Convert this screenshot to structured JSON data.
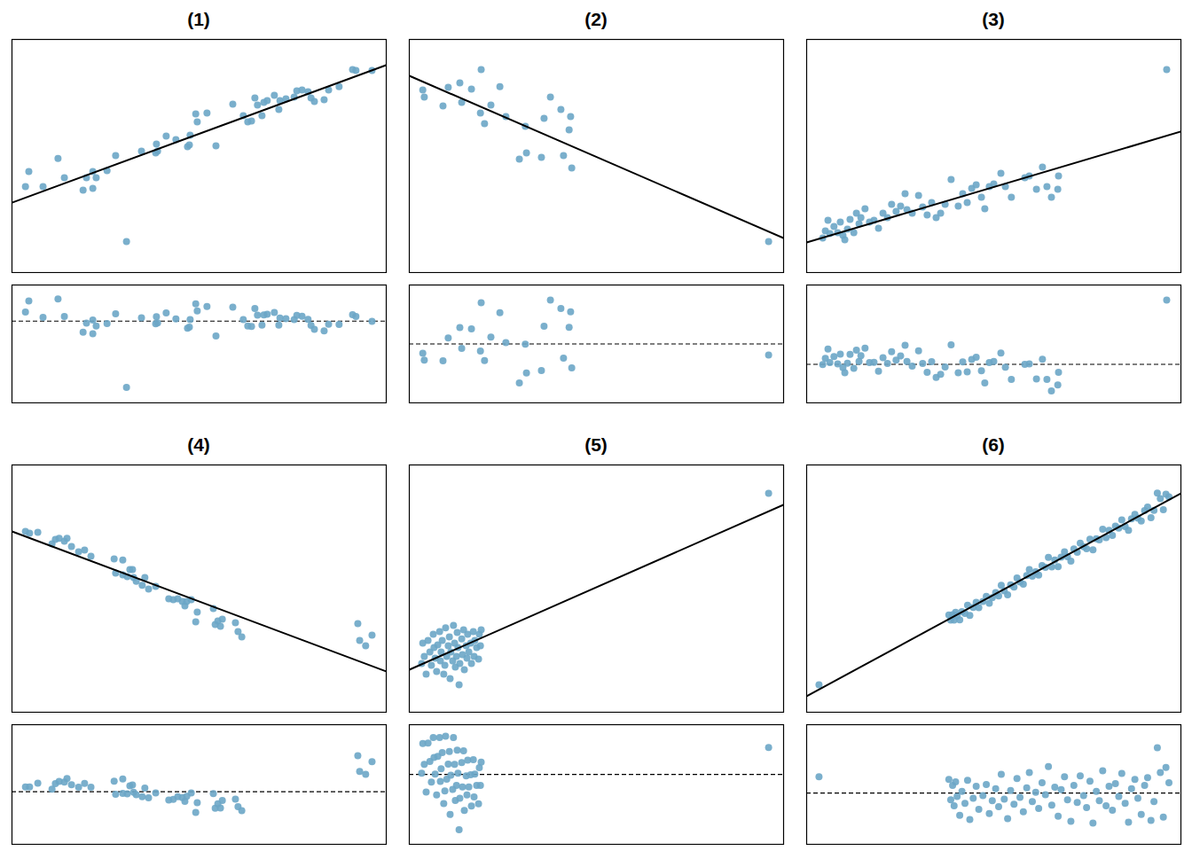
{
  "chart_data": [
    {
      "type": "scatter",
      "title": "(1)",
      "color": "#6ca6c6",
      "marker": "circle",
      "tick_labels": false,
      "xlim": [
        0,
        100
      ],
      "ylim": [
        0,
        100
      ],
      "residual_ylim": [
        -43,
        19
      ],
      "fit_line": {
        "x": [
          0,
          100
        ],
        "y": [
          30.0,
          89.0
        ],
        "color": "#000000"
      },
      "x": [
        3.6,
        4.5,
        8.3,
        12.3,
        14.0,
        19.0,
        19.9,
        21.6,
        21.6,
        22.5,
        25.4,
        27.7,
        30.6,
        34.6,
        38.4,
        38.6,
        38.9,
        41.2,
        43.8,
        46.9,
        47.4,
        47.6,
        49.1,
        49.5,
        52.1,
        54.5,
        59.0,
        61.8,
        63.0,
        64.0,
        64.9,
        65.6,
        66.8,
        67.3,
        68.2,
        70.1,
        71.3,
        71.6,
        73.2,
        75.4,
        76.1,
        77.5,
        79.1,
        79.9,
        80.8,
        83.4,
        84.6,
        87.4,
        91.0,
        91.9,
        96.2
      ],
      "y": [
        36.9,
        43.3,
        36.9,
        49.0,
        40.7,
        35.4,
        40.7,
        36.1,
        43.3,
        40.7,
        43.7,
        50.2,
        13.3,
        52.1,
        51.3,
        55.1,
        52.1,
        58.6,
        57.0,
        54.0,
        54.8,
        58.9,
        68.1,
        64.6,
        68.4,
        54.4,
        72.2,
        67.3,
        64.6,
        65.0,
        74.9,
        71.9,
        67.3,
        73.0,
        73.8,
        76.0,
        70.0,
        73.8,
        74.5,
        75.3,
        77.9,
        78.3,
        77.6,
        74.9,
        73.4,
        74.1,
        78.3,
        79.8,
        87.1,
        86.7,
        86.7
      ],
      "residuals": [
        4.8,
        10.6,
        2.0,
        11.7,
        2.4,
        -5.8,
        -1.0,
        -6.6,
        0.6,
        -2.6,
        -1.3,
        3.9,
        -34.8,
        1.7,
        -1.4,
        2.3,
        -0.9,
        4.3,
        1.2,
        -3.7,
        -3.2,
        0.8,
        9.1,
        5.4,
        7.7,
        -7.8,
        7.4,
        0.8,
        -2.6,
        -2.8,
        6.6,
        3.2,
        -2.1,
        3.3,
        3.6,
        4.6,
        -2.1,
        1.6,
        1.3,
        0.8,
        3.0,
        2.6,
        0.9,
        -2.2,
        -4.3,
        -5.1,
        -1.6,
        -1.8,
        3.4,
        2.5,
        -0.1
      ]
    },
    {
      "type": "scatter",
      "title": "(2)",
      "color": "#6ca6c6",
      "marker": "circle",
      "tick_labels": false,
      "xlim": [
        0,
        100
      ],
      "ylim": [
        0,
        100
      ],
      "residual_ylim": [
        -23,
        23
      ],
      "fit_line": {
        "x": [
          0,
          100
        ],
        "y": [
          84.4,
          14.8
        ],
        "color": "#000000"
      },
      "x": [
        3.6,
        4.0,
        9.0,
        10.4,
        13.5,
        14.0,
        16.6,
        19.2,
        19.0,
        20.1,
        21.8,
        24.2,
        25.8,
        29.4,
        31.0,
        31.3,
        35.3,
        36.0,
        37.7,
        40.5,
        41.2,
        42.7,
        43.1,
        43.4,
        96.0
      ],
      "y": [
        78.3,
        75.3,
        71.5,
        79.5,
        81.4,
        73.0,
        78.7,
        87.1,
        68.4,
        63.9,
        71.9,
        79.8,
        66.9,
        48.7,
        62.7,
        51.3,
        49.4,
        66.2,
        75.3,
        70.0,
        50.2,
        61.2,
        66.9,
        44.9,
        13.3
      ],
      "residuals": [
        -3.6,
        -6.3,
        -6.6,
        2.3,
        6.4,
        -1.7,
        5.9,
        16.1,
        -2.8,
        -6.5,
        2.7,
        12.2,
        0.5,
        -15.2,
        -0.1,
        -11.3,
        -10.4,
        6.9,
        17.1,
        13.8,
        -5.5,
        6.5,
        12.5,
        -9.3,
        -4.3
      ]
    },
    {
      "type": "scatter",
      "title": "(3)",
      "color": "#6ca6c6",
      "marker": "circle",
      "tick_labels": false,
      "xlim": [
        0,
        100
      ],
      "ylim": [
        0,
        100
      ],
      "residual_ylim": [
        -17,
        35
      ],
      "fit_line": {
        "x": [
          0,
          100
        ],
        "y": [
          12.9,
          60.5
        ],
        "color": "#000000"
      },
      "x": [
        4.3,
        5.0,
        5.7,
        6.2,
        7.3,
        8.3,
        9.0,
        9.7,
        10.2,
        10.9,
        11.6,
        12.6,
        13.3,
        14.0,
        14.5,
        15.6,
        16.8,
        18.0,
        19.2,
        20.4,
        21.6,
        22.7,
        23.9,
        25.1,
        26.3,
        26.8,
        28.2,
        29.9,
        31.0,
        32.2,
        33.4,
        34.6,
        35.8,
        37.0,
        38.6,
        40.5,
        41.7,
        42.9,
        44.1,
        45.3,
        46.7,
        47.6,
        48.8,
        50.0,
        51.9,
        53.1,
        54.7,
        58.3,
        59.5,
        61.4,
        63.0,
        64.2,
        65.4,
        67.1,
        67.3,
        96.2
      ],
      "y": [
        14.8,
        17.9,
        22.4,
        16.7,
        19.8,
        17.1,
        21.7,
        16.0,
        14.1,
        18.6,
        22.8,
        17.1,
        25.5,
        20.9,
        23.6,
        27.4,
        21.7,
        22.4,
        19.0,
        25.5,
        23.6,
        29.3,
        26.2,
        28.5,
        33.8,
        27.0,
        25.5,
        33.1,
        28.1,
        24.7,
        30.0,
        23.6,
        25.5,
        29.3,
        39.9,
        28.5,
        33.8,
        30.0,
        36.1,
        37.6,
        32.3,
        27.4,
        36.9,
        38.0,
        42.6,
        36.9,
        32.3,
        40.7,
        41.4,
        35.7,
        45.2,
        36.9,
        32.3,
        35.7,
        41.4,
        87.1
      ],
      "residuals": [
        -0.1,
        2.6,
        6.8,
        0.8,
        3.4,
        0.2,
        4.5,
        -1.5,
        -3.7,
        0.5,
        4.4,
        -1.8,
        6.3,
        1.3,
        3.8,
        7.1,
        0.8,
        0.9,
        -3.0,
        2.9,
        0.4,
        5.6,
        1.9,
        3.7,
        8.4,
        1.3,
        -0.8,
        6.0,
        0.4,
        -3.5,
        1.2,
        -5.8,
        -4.4,
        -1.2,
        8.6,
        -3.7,
        1.1,
        -3.3,
        2.2,
        3.1,
        -2.8,
        -8.2,
        0.8,
        1.3,
        5.0,
        -1.3,
        -6.6,
        0.0,
        0.2,
        -6.4,
        2.3,
        -6.6,
        -11.7,
        -9.1,
        -3.5,
        28.4
      ]
    },
    {
      "type": "scatter",
      "title": "(4)",
      "color": "#6ca6c6",
      "marker": "circle",
      "tick_labels": false,
      "xlim": [
        0,
        100
      ],
      "ylim": [
        0,
        100
      ],
      "residual_ylim": [
        -22,
        28
      ],
      "fit_line": {
        "x": [
          0,
          100
        ],
        "y": [
          73.1,
          16.5
        ],
        "color": "#000000"
      },
      "x": [
        3.6,
        4.7,
        6.9,
        10.7,
        11.6,
        12.6,
        14.0,
        14.7,
        15.9,
        17.8,
        19.4,
        21.1,
        27.3,
        27.7,
        29.6,
        29.6,
        30.8,
        31.5,
        32.2,
        32.5,
        33.2,
        34.8,
        35.5,
        36.5,
        38.4,
        41.9,
        43.1,
        44.3,
        45.5,
        46.2,
        46.7,
        47.9,
        49.1,
        49.5,
        53.8,
        54.3,
        55.0,
        55.7,
        56.2,
        59.7,
        60.4,
        61.4,
        92.4,
        92.9,
        94.5,
        96.2
      ],
      "y": [
        73.1,
        72.4,
        72.8,
        68.1,
        69.9,
        70.3,
        69.2,
        70.3,
        67.0,
        64.9,
        65.6,
        63.1,
        62.0,
        56.3,
        61.6,
        55.6,
        54.8,
        57.7,
        57.7,
        54.5,
        53.0,
        51.3,
        54.5,
        49.8,
        50.9,
        45.9,
        45.5,
        45.9,
        44.8,
        43.0,
        44.8,
        45.5,
        36.6,
        40.5,
        41.9,
        35.5,
        36.9,
        34.8,
        37.6,
        36.2,
        32.6,
        30.5,
        35.8,
        29.0,
        26.9,
        31.2
      ],
      "residuals": [
        2.0,
        2.0,
        3.6,
        1.1,
        3.4,
        4.3,
        4.0,
        5.5,
        2.9,
        1.9,
        3.5,
        1.9,
        4.4,
        -1.1,
        5.3,
        -0.7,
        -0.9,
        2.4,
        2.8,
        -0.2,
        -1.3,
        -2.1,
        1.5,
        -2.6,
        -0.5,
        -3.5,
        -3.2,
        -2.1,
        -2.5,
        -4.0,
        -1.9,
        -0.5,
        -8.7,
        -4.6,
        -0.8,
        -6.9,
        -5.1,
        -6.8,
        -3.7,
        -3.1,
        -6.3,
        -7.9,
        15.0,
        8.5,
        7.3,
        12.5
      ]
    },
    {
      "type": "scatter",
      "title": "(5)",
      "color": "#6ca6c6",
      "marker": "circle",
      "tick_labels": false,
      "xlim": [
        0,
        100
      ],
      "ylim": [
        0,
        100
      ],
      "residual_ylim": [
        -19,
        13.5
      ],
      "fit_line": {
        "x": [
          0,
          100
        ],
        "y": [
          17.2,
          83.9
        ],
        "color": "#000000"
      },
      "x": [
        3.3,
        3.6,
        4.0,
        4.5,
        5.0,
        5.5,
        5.9,
        6.4,
        6.6,
        6.9,
        7.3,
        7.6,
        8.1,
        8.3,
        8.5,
        8.8,
        9.2,
        9.5,
        9.7,
        10.0,
        10.4,
        10.7,
        10.9,
        11.1,
        11.6,
        11.8,
        12.1,
        12.3,
        12.6,
        12.8,
        13.0,
        13.3,
        13.5,
        14.0,
        14.2,
        14.5,
        14.7,
        15.2,
        15.4,
        15.6,
        15.9,
        16.4,
        16.6,
        17.1,
        17.3,
        17.5,
        18.0,
        18.5,
        18.7,
        19.0,
        19.2,
        96.0
      ],
      "y": [
        19.7,
        28.0,
        22.6,
        15.4,
        29.0,
        24.4,
        19.0,
        31.5,
        26.2,
        21.9,
        16.5,
        27.2,
        32.6,
        20.8,
        24.4,
        29.0,
        15.4,
        19.0,
        34.1,
        22.6,
        26.9,
        30.5,
        13.6,
        24.4,
        20.8,
        35.1,
        28.0,
        18.3,
        22.6,
        32.3,
        26.2,
        11.1,
        19.7,
        29.7,
        23.3,
        33.3,
        17.2,
        26.9,
        21.9,
        31.5,
        24.4,
        28.0,
        19.7,
        32.6,
        22.6,
        29.0,
        26.2,
        21.5,
        31.5,
        26.9,
        33.3,
        88.5
      ],
      "residuals": [
        0.3,
        8.4,
        2.7,
        -4.8,
        8.5,
        3.5,
        -2.1,
        10.0,
        4.6,
        0.1,
        -5.6,
        4.9,
        10.0,
        -1.9,
        1.5,
        5.9,
        -7.9,
        -4.5,
        10.4,
        -1.3,
        2.8,
        6.2,
        -10.9,
        -0.2,
        -4.1,
        10.0,
        2.7,
        -7.1,
        -3.0,
        6.6,
        0.3,
        -15.0,
        -6.5,
        3.2,
        -3.4,
        6.4,
        -9.8,
        -0.4,
        -5.6,
        3.9,
        -3.4,
        -0.1,
        -8.6,
        4.0,
        -6.1,
        0.1,
        -3.0,
        -8.0,
        1.8,
        -3.0,
        3.3,
        7.3
      ]
    },
    {
      "type": "scatter",
      "title": "(6)",
      "color": "#6ca6c6",
      "marker": "circle",
      "tick_labels": false,
      "xlim": [
        0,
        100
      ],
      "ylim": [
        0,
        100
      ],
      "residual_ylim": [
        -6,
        8
      ],
      "fit_line": {
        "x": [
          0,
          100
        ],
        "y": [
          6.5,
          88.5
        ],
        "color": "#000000"
      },
      "x": [
        3.3,
        38.0,
        38.5,
        39.0,
        39.4,
        39.8,
        40.2,
        40.9,
        41.5,
        42.3,
        43.0,
        43.6,
        44.5,
        45.3,
        46.0,
        47.1,
        48.0,
        48.8,
        49.6,
        50.5,
        51.3,
        52.0,
        52.8,
        53.7,
        54.5,
        55.4,
        56.2,
        57.0,
        57.9,
        58.8,
        59.5,
        60.3,
        61.2,
        62.0,
        62.9,
        63.8,
        64.6,
        65.5,
        66.3,
        67.2,
        68.0,
        68.9,
        69.7,
        70.6,
        71.4,
        72.3,
        73.1,
        74.0,
        74.8,
        75.7,
        76.5,
        77.4,
        78.2,
        79.1,
        80.0,
        80.8,
        81.7,
        82.5,
        83.4,
        84.2,
        85.1,
        86.0,
        86.8,
        87.7,
        88.5,
        89.4,
        90.3,
        91.1,
        92.0,
        92.8,
        93.7,
        94.5,
        95.3,
        96.0,
        96.8
      ],
      "y": [
        11.1,
        39.3,
        37.3,
        39.4,
        37.3,
        40.4,
        39.1,
        37.4,
        40.7,
        40.0,
        43.3,
        39.2,
        42.4,
        44.4,
        42.3,
        44.8,
        46.9,
        44.1,
        46.3,
        48.4,
        47.0,
        51.3,
        49.1,
        47.5,
        51.5,
        50.6,
        54.3,
        52.7,
        51.8,
        55.3,
        57.7,
        55.0,
        56.8,
        55.5,
        59.3,
        58.6,
        62.6,
        58.8,
        61.6,
        58.9,
        62.7,
        64.9,
        62.9,
        61.1,
        66.0,
        64.7,
        68.4,
        66.9,
        66.1,
        70.0,
        65.7,
        70.2,
        69.7,
        74.0,
        70.6,
        73.6,
        71.5,
        75.3,
        74.5,
        77.8,
        75.1,
        73.6,
        78.2,
        80.0,
        78.5,
        77.3,
        81.5,
        83.0,
        78.7,
        81.6,
        88.6,
        86.4,
        81.9,
        88.2,
        87.1
      ],
      "residuals": [
        1.9,
        1.6,
        -0.8,
        0.9,
        -1.5,
        1.3,
        -0.4,
        -2.6,
        0.2,
        -1.2,
        1.5,
        -3.1,
        -0.6,
        0.8,
        -1.9,
        -0.3,
        1.0,
        -2.4,
        -0.9,
        0.5,
        -1.6,
        2.2,
        -0.7,
        -3.0,
        0.3,
        -1.3,
        1.7,
        -0.5,
        -2.2,
        0.6,
        2.4,
        -1.0,
        0.1,
        -1.8,
        1.2,
        -0.2,
        3.1,
        -1.4,
        0.7,
        -2.7,
        0.4,
        1.9,
        -0.8,
        -3.3,
        0.9,
        -1.1,
        2.0,
        -0.3,
        -1.7,
        1.4,
        -3.5,
        0.2,
        -0.9,
        2.6,
        -1.5,
        0.8,
        -2.0,
        1.1,
        -0.4,
        2.3,
        -1.2,
        -3.4,
        0.5,
        1.6,
        -0.6,
        -2.5,
        0.9,
        1.8,
        -3.2,
        -1.0,
        5.3,
        2.4,
        -2.8,
        3.0,
        1.2
      ]
    }
  ]
}
